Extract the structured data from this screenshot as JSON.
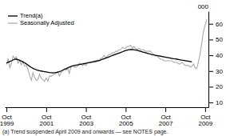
{
  "chart_data": {
    "type": "line",
    "ylabel": "000",
    "footnote": "(a) Trend suspended April 2009 and onwards — see NOTES page.",
    "legend": "upper left",
    "categories": [
      "Oct\n1999",
      null,
      null,
      null,
      null,
      null,
      null,
      null,
      null,
      null,
      null,
      null,
      null,
      null,
      null,
      null,
      null,
      null,
      null,
      null,
      null,
      null,
      null,
      null,
      "Oct\n2001",
      null,
      null,
      null,
      null,
      null,
      null,
      null,
      null,
      null,
      null,
      null,
      null,
      null,
      null,
      null,
      null,
      null,
      null,
      null,
      null,
      null,
      null,
      null,
      "Oct\n2003",
      null,
      null,
      null,
      null,
      null,
      null,
      null,
      null,
      null,
      null,
      null,
      null,
      null,
      null,
      null,
      null,
      null,
      null,
      null,
      null,
      null,
      null,
      null,
      "Oct\n2005",
      null,
      null,
      null,
      null,
      null,
      null,
      null,
      null,
      null,
      null,
      null,
      null,
      null,
      null,
      null,
      null,
      null,
      null,
      null,
      null,
      null,
      null,
      null,
      "Oct\n2007",
      null,
      null,
      null,
      null,
      null,
      null,
      null,
      null,
      null,
      null,
      null,
      null,
      null,
      null,
      null,
      null,
      null,
      null,
      null,
      null,
      null,
      null,
      null,
      "Oct\n2009",
      null
    ],
    "ylim": [
      7,
      68
    ],
    "yticks": [
      10,
      20,
      30,
      40,
      50,
      60
    ],
    "series": [
      {
        "name": "Trend(a)",
        "color": "#000000",
        "values": [
          35.0,
          35.5,
          36.0,
          36.5,
          37.0,
          37.5,
          37.5,
          37.2,
          36.8,
          36.3,
          35.8,
          35.2,
          34.5,
          33.8,
          33.0,
          32.3,
          31.7,
          31.2,
          30.8,
          30.5,
          30.2,
          30.0,
          29.8,
          29.6,
          29.4,
          29.2,
          29.0,
          28.9,
          28.8,
          28.9,
          29.0,
          29.3,
          29.6,
          30.0,
          30.5,
          31.0,
          31.5,
          32.0,
          32.5,
          32.9,
          33.2,
          33.5,
          33.7,
          33.9,
          34.1,
          34.3,
          34.5,
          34.7,
          34.9,
          35.1,
          35.3,
          35.5,
          35.7,
          35.9,
          36.1,
          36.4,
          36.7,
          37.0,
          37.4,
          37.8,
          38.2,
          38.6,
          39.0,
          39.4,
          39.8,
          40.2,
          40.6,
          41.0,
          41.4,
          41.8,
          42.2,
          42.6,
          43.0,
          43.3,
          43.5,
          43.6,
          43.6,
          43.5,
          43.3,
          43.1,
          42.8,
          42.5,
          42.2,
          41.9,
          41.6,
          41.3,
          41.0,
          40.7,
          40.4,
          40.2,
          40.0,
          39.8,
          39.6,
          39.4,
          39.2,
          39.0,
          38.8,
          38.6,
          38.4,
          38.2,
          38.0,
          37.8,
          37.7,
          37.5,
          37.3,
          37.1,
          36.9,
          36.8,
          36.6,
          36.4,
          36.2,
          36.0,
          35.8,
          null,
          null,
          null,
          null,
          null,
          null,
          null,
          null,
          null
        ]
      },
      {
        "name": "Seasonally Adjusted",
        "color": "#aaaaaa",
        "values": [
          34.0,
          38.0,
          32.0,
          35.0,
          39.5,
          38.0,
          39.0,
          35.0,
          36.5,
          34.0,
          36.0,
          33.0,
          33.5,
          31.0,
          27.0,
          24.0,
          29.0,
          26.0,
          24.0,
          24.5,
          28.0,
          25.5,
          24.5,
          23.5,
          25.5,
          23.5,
          27.0,
          26.5,
          27.5,
          28.0,
          28.5,
          29.5,
          27.0,
          29.0,
          30.0,
          31.5,
          30.5,
          31.5,
          28.5,
          33.0,
          33.5,
          32.5,
          32.5,
          33.0,
          35.0,
          34.5,
          33.5,
          34.5,
          33.5,
          35.5,
          35.5,
          36.0,
          36.0,
          36.5,
          36.5,
          37.0,
          36.5,
          38.0,
          38.5,
          40.0,
          38.5,
          39.5,
          40.5,
          40.5,
          41.5,
          41.5,
          42.5,
          42.5,
          43.5,
          43.5,
          45.0,
          44.5,
          44.5,
          45.5,
          45.5,
          46.5,
          44.5,
          45.5,
          44.5,
          43.5,
          44.5,
          43.5,
          43.5,
          43.5,
          42.5,
          42.5,
          42.5,
          42.5,
          41.5,
          40.5,
          39.5,
          39.5,
          38.5,
          37.5,
          37.5,
          36.5,
          36.5,
          36.5,
          36.5,
          36.5,
          36.5,
          35.5,
          35.5,
          35.5,
          34.5,
          34.5,
          35.5,
          34.5,
          33.5,
          33.5,
          33.5,
          32.5,
          33.0,
          34.5,
          32.0,
          31.5,
          36.0,
          41.0,
          48.0,
          55.0,
          59.0,
          63.0
        ]
      }
    ]
  }
}
